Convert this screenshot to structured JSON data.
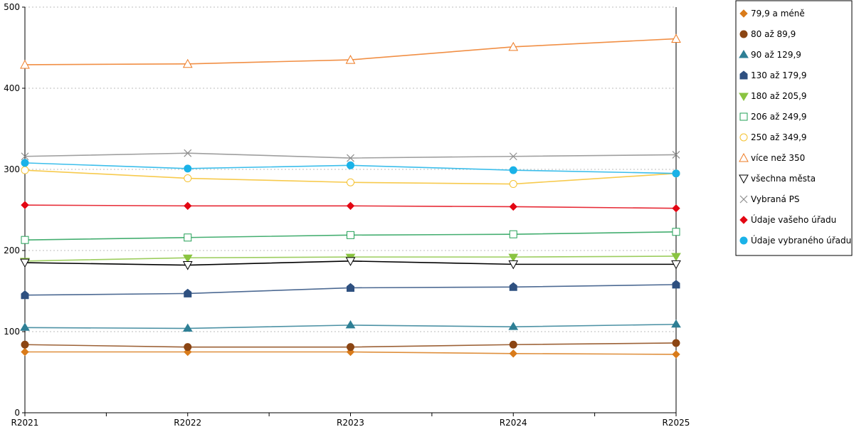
{
  "chart_data": {
    "type": "line",
    "x": [
      "R2021",
      "R2022",
      "R2023",
      "R2024",
      "R2025"
    ],
    "ylim": [
      0,
      500
    ],
    "y_ticks": [
      0,
      100,
      200,
      300,
      400,
      500
    ],
    "grid": "horizontal-dotted",
    "legend_position": "right",
    "series": [
      {
        "name": "79,9 a méně",
        "color": "#d97b1a",
        "marker": "diamond",
        "values": [
          75,
          75,
          75,
          73,
          72
        ]
      },
      {
        "name": "80 až 89,9",
        "color": "#8b4513",
        "marker": "circle",
        "values": [
          84,
          81,
          81,
          84,
          86
        ]
      },
      {
        "name": "90 až 129,9",
        "color": "#2e7f95",
        "marker": "triangle-up",
        "values": [
          105,
          104,
          108,
          106,
          109
        ]
      },
      {
        "name": "130 až 179,9",
        "color": "#2e5080",
        "marker": "pentagon",
        "values": [
          145,
          147,
          154,
          155,
          158
        ]
      },
      {
        "name": "180 až 205,9",
        "color": "#8ac441",
        "marker": "triangle-down",
        "values": [
          187,
          191,
          192,
          192,
          193
        ]
      },
      {
        "name": "206 až 249,9",
        "color": "#23a057",
        "marker": "square-open",
        "values": [
          213,
          216,
          219,
          220,
          223
        ]
      },
      {
        "name": "250 až 349,9",
        "color": "#f5c12e",
        "marker": "circle-open",
        "values": [
          299,
          289,
          284,
          282,
          295
        ]
      },
      {
        "name": "více než 350",
        "color": "#ee7b24",
        "marker": "triangle-up-open",
        "values": [
          429,
          430,
          435,
          451,
          461
        ]
      },
      {
        "name": "všechna města",
        "color": "#000000",
        "marker": "triangle-down-open",
        "values": [
          185,
          182,
          187,
          183,
          183
        ]
      },
      {
        "name": "Vybraná PS",
        "color": "#8e8e8e",
        "marker": "x",
        "values": [
          316,
          320,
          314,
          316,
          318
        ]
      },
      {
        "name": "Údaje vašeho úřadu",
        "color": "#e30613",
        "marker": "diamond",
        "values": [
          256,
          255,
          255,
          254,
          252
        ]
      },
      {
        "name": "Údaje vybraného úřadu",
        "color": "#1ab2e8",
        "marker": "circle",
        "values": [
          308,
          301,
          305,
          299,
          295
        ]
      }
    ]
  }
}
